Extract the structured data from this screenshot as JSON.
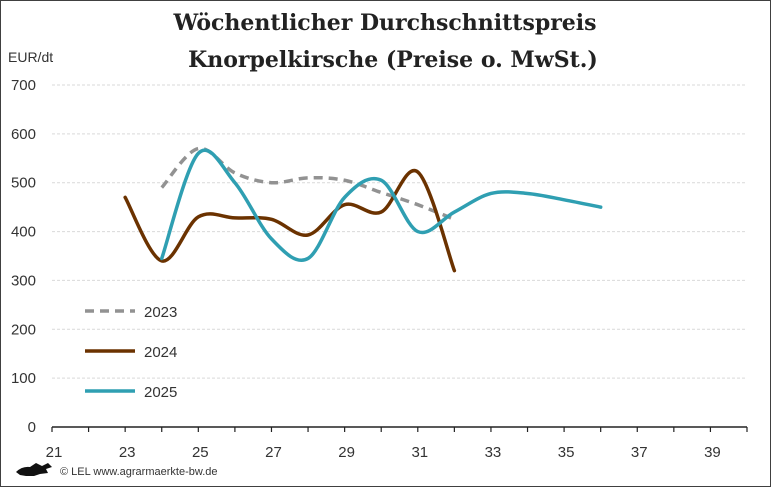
{
  "chart_data": {
    "type": "line",
    "title_line1": "Wöchentlicher Durchschnittspreis",
    "title_line2": "Knorpelkirsche (Preise o. MwSt.)",
    "ylabel": "EUR/dt",
    "xlabel": "",
    "xlim": [
      21,
      40
    ],
    "ylim": [
      0,
      700
    ],
    "x_ticks": [
      21,
      23,
      25,
      27,
      29,
      31,
      33,
      35,
      37,
      39
    ],
    "y_ticks": [
      0,
      100,
      200,
      300,
      400,
      500,
      600,
      700
    ],
    "grid": true,
    "legend_position": "bottom-left",
    "series": [
      {
        "name": "2023",
        "color": "#929292",
        "dashed": true,
        "x": [
          24,
          25,
          26,
          27,
          28,
          29,
          30,
          31,
          32
        ],
        "values": [
          490,
          570,
          520,
          500,
          510,
          505,
          480,
          455,
          425
        ]
      },
      {
        "name": "2024",
        "color": "#6b3200",
        "dashed": false,
        "x": [
          23,
          24,
          25,
          26,
          27,
          28,
          29,
          30,
          31,
          32
        ],
        "values": [
          470,
          340,
          430,
          428,
          425,
          393,
          455,
          440,
          522,
          320
        ]
      },
      {
        "name": "2025",
        "color": "#2f9fb2",
        "dashed": false,
        "x": [
          24,
          25,
          26,
          27,
          28,
          29,
          30,
          31,
          32,
          33,
          34,
          35,
          36
        ],
        "values": [
          345,
          560,
          500,
          385,
          345,
          470,
          505,
          400,
          440,
          478,
          478,
          465,
          450
        ]
      }
    ]
  },
  "footer": {
    "credit": "© LEL www.agrarmaerkte-bw.de",
    "logo_icon": "lion-logo-icon"
  }
}
